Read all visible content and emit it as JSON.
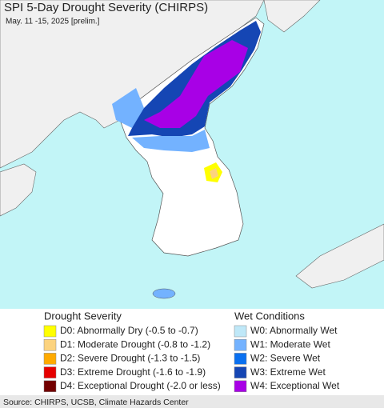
{
  "header": {
    "title": "SPI 5-Day Drought Severity (CHIRPS)",
    "subtitle": "May. 11 -15, 2025 [prelim.]"
  },
  "legend": {
    "drought": {
      "title": "Drought Severity",
      "items": [
        {
          "label": "D0: Abnormally Dry (-0.5 to -0.7)",
          "color": "#ffff00"
        },
        {
          "label": "D1: Moderate Drought (-0.8 to -1.2)",
          "color": "#fcd37f"
        },
        {
          "label": "D2: Severe Drought (-1.3 to -1.5)",
          "color": "#ffaa00"
        },
        {
          "label": "D3: Extreme Drought (-1.6 to -1.9)",
          "color": "#e60000"
        },
        {
          "label": "D4: Exceptional Drought (-2.0 or less)",
          "color": "#730000"
        }
      ]
    },
    "wet": {
      "title": "Wet Conditions",
      "items": [
        {
          "label": "W0: Abnormally Wet",
          "color": "#bfe8f8"
        },
        {
          "label": "W1: Moderate Wet",
          "color": "#73b2ff"
        },
        {
          "label": "W2: Severe Wet",
          "color": "#0a70f0"
        },
        {
          "label": "W3: Extreme Wet",
          "color": "#1546b4"
        },
        {
          "label": "W4: Exceptional Wet",
          "color": "#a800e6"
        }
      ]
    }
  },
  "footer": {
    "source": "Source: CHIRPS, UCSB, Climate Hazards Center"
  }
}
